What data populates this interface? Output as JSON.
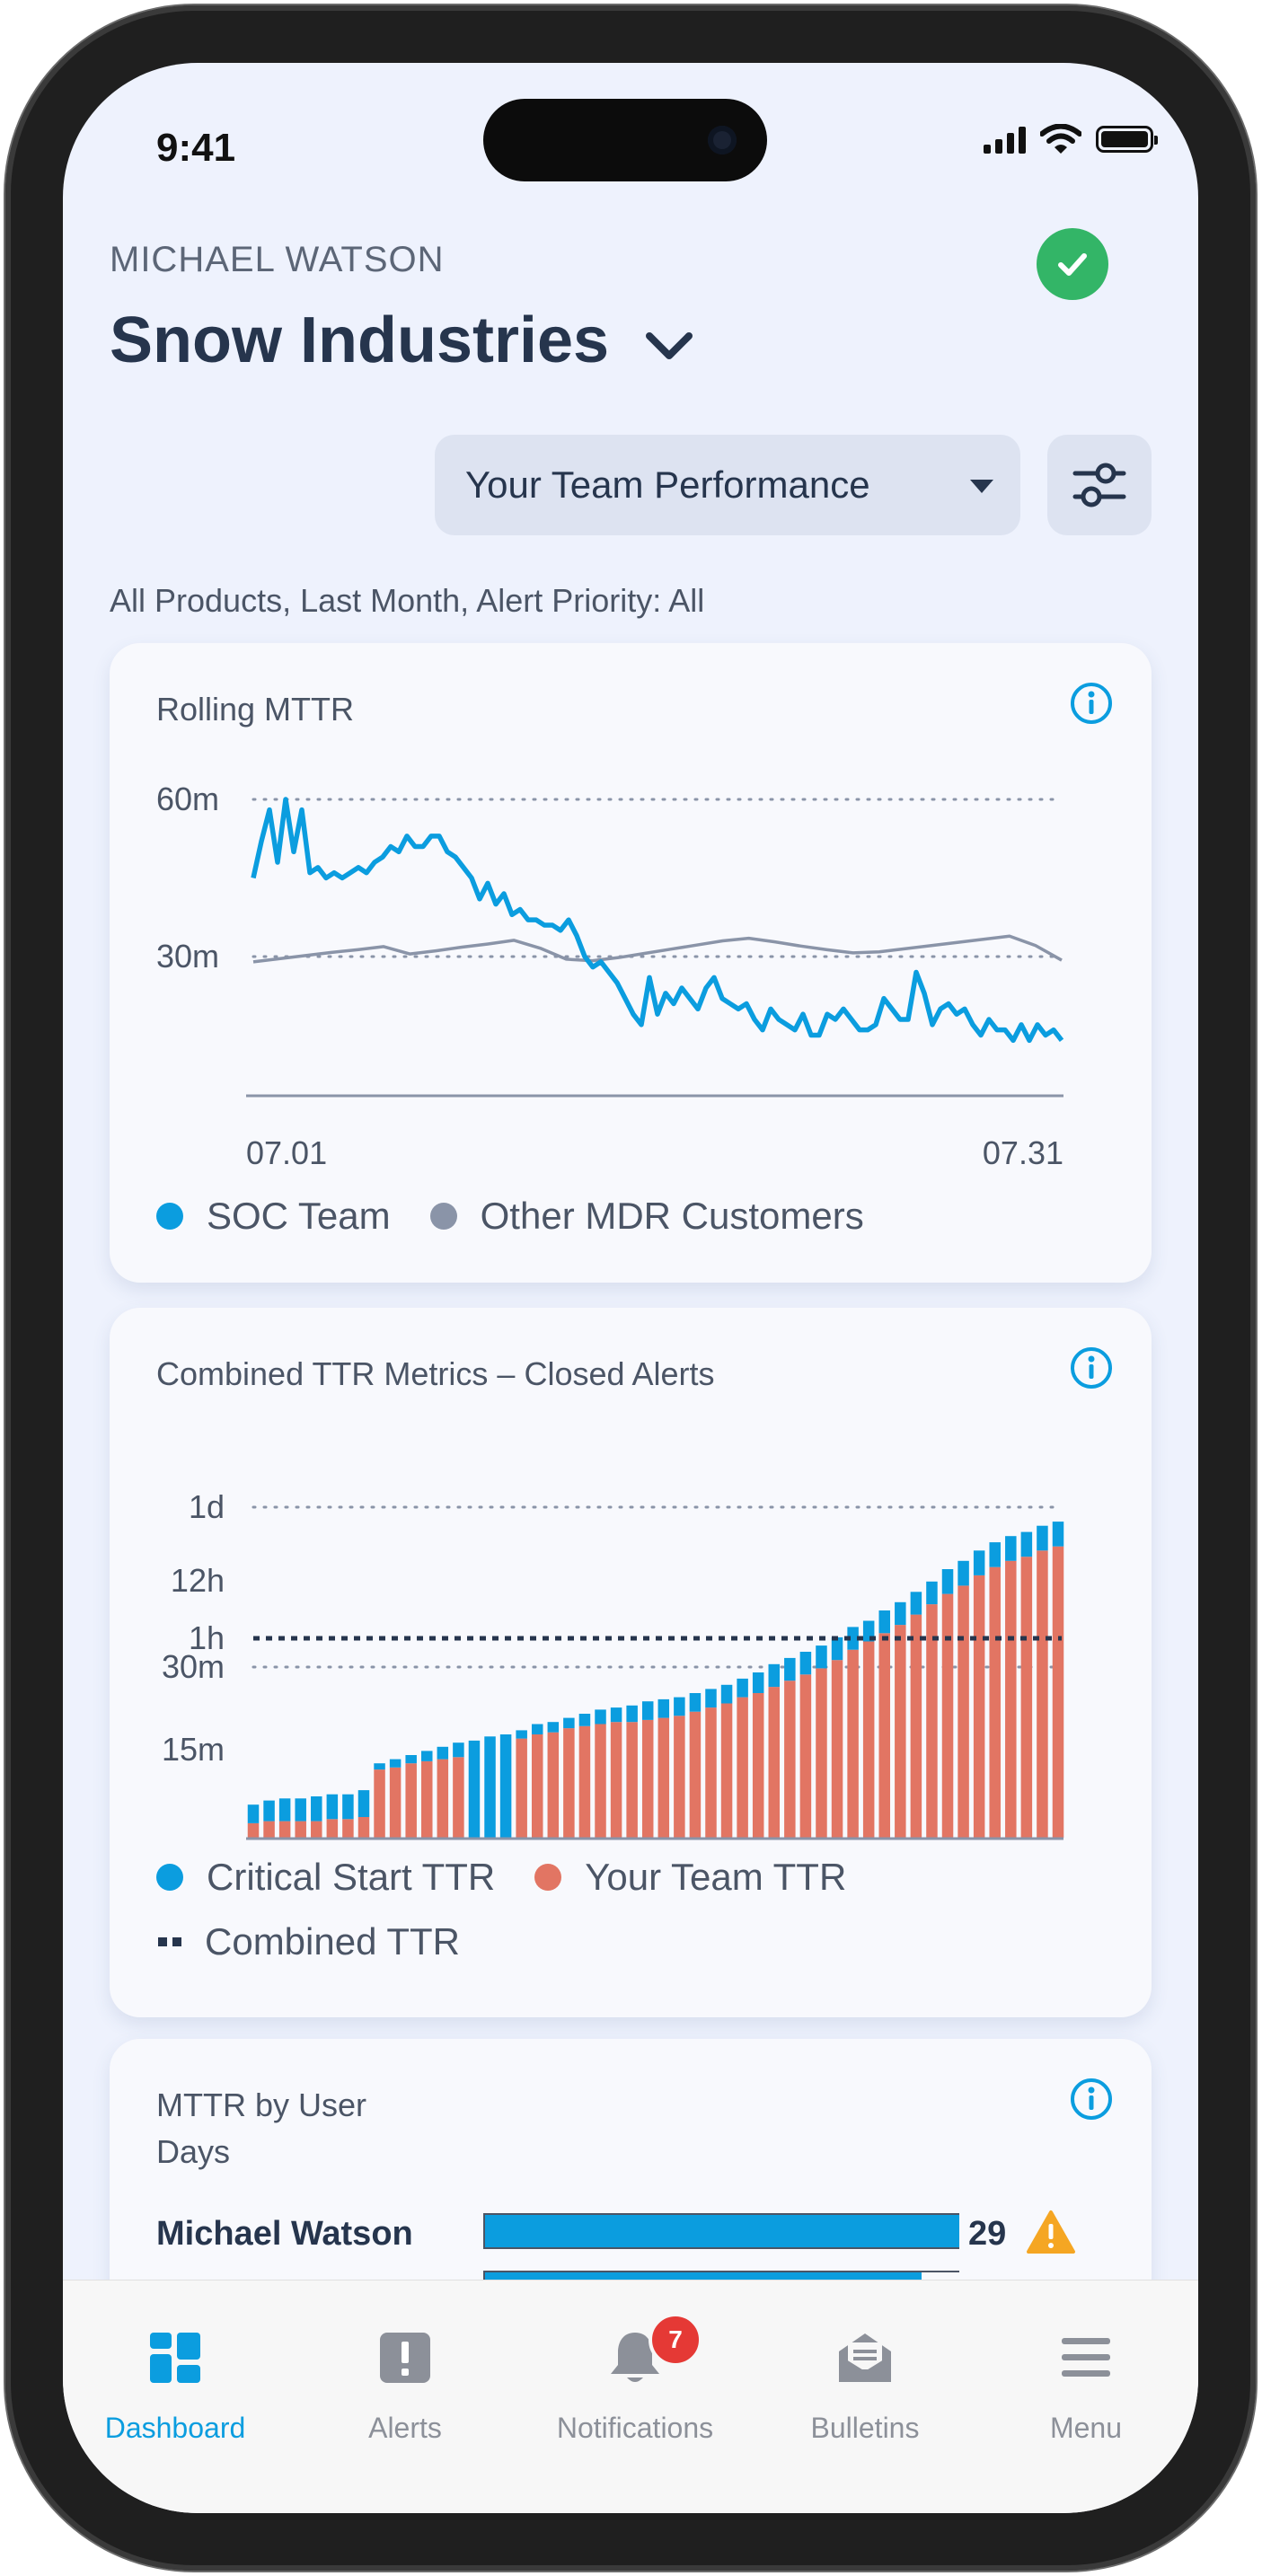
{
  "status_bar": {
    "time": "9:41"
  },
  "header": {
    "user_name": "MICHAEL WATSON",
    "company": "Snow Industries",
    "view_select": "Your Team Performance",
    "filter_summary": "All Products, Last Month, Alert Priority: All"
  },
  "colors": {
    "accent": "#0b9ddf",
    "team": "#e27563",
    "other": "#8a94a8",
    "success": "#33b567",
    "warning": "#f5a623",
    "badge": "#e53935"
  },
  "cards": {
    "rolling": {
      "title": "Rolling MTTR",
      "legend": [
        "SOC Team",
        "Other MDR Customers"
      ]
    },
    "combined": {
      "title": "Combined TTR Metrics – Closed Alerts",
      "legend": [
        "Critical Start TTR",
        "Your Team TTR",
        "Combined TTR"
      ]
    },
    "by_user": {
      "title": "MTTR by User",
      "subtitle": "Days",
      "rows": [
        {
          "name": "Michael Watson",
          "value": "29"
        }
      ]
    }
  },
  "chart_data": [
    {
      "type": "line",
      "title": "Rolling MTTR",
      "x_ticks": [
        "07.01",
        "07.31"
      ],
      "y_ticks": [
        "60m",
        "30m"
      ],
      "ylim": [
        0,
        60
      ],
      "series": [
        {
          "name": "SOC Team",
          "color": "#0b9ddf",
          "values": [
            45,
            52,
            58,
            48,
            60,
            50,
            58,
            46,
            47,
            45,
            46,
            45,
            46,
            47,
            46,
            48,
            49,
            51,
            50,
            53,
            51,
            51,
            53,
            53,
            50,
            49,
            47,
            45,
            41,
            44,
            40,
            42,
            38,
            39,
            37,
            37,
            36,
            36,
            35,
            37,
            34,
            30,
            28,
            29,
            27,
            25,
            22,
            19,
            17,
            26,
            19,
            23,
            21,
            24,
            22,
            20,
            24,
            26,
            22,
            21,
            20,
            21,
            18,
            16,
            20,
            18,
            17,
            16,
            19,
            15,
            15,
            19,
            18,
            20,
            18,
            16,
            16,
            17,
            22,
            20,
            18,
            18,
            27,
            23,
            17,
            20,
            21,
            19,
            20,
            17,
            15,
            18,
            16,
            16,
            14,
            17,
            14,
            17,
            15,
            16,
            14
          ]
        },
        {
          "name": "Other MDR Customers",
          "color": "#8a94a8",
          "values": [
            29,
            29.6,
            30.2,
            30.8,
            31.3,
            31.9,
            30.5,
            31.1,
            31.8,
            32.4,
            33.1,
            31.6,
            29.5,
            29.2,
            29.8,
            30.6,
            31.4,
            32.2,
            33,
            33.5,
            32.8,
            32,
            31.3,
            30.7,
            30.9,
            31.5,
            32.1,
            32.7,
            33.3,
            33.9,
            32.1,
            29.3
          ]
        }
      ],
      "grid": "dotted",
      "legend": "bottom"
    },
    {
      "type": "bar",
      "stacked": true,
      "title": "Combined TTR Metrics – Closed Alerts",
      "y_ticks": [
        "1d",
        "12h",
        "1h",
        "30m",
        "15m"
      ],
      "reference_line": {
        "name": "Combined TTR",
        "value": "1h"
      },
      "series": [
        {
          "name": "Your Team TTR",
          "color": "#e27563",
          "values": [
            7,
            8,
            8,
            8,
            8,
            9,
            9,
            10,
            33,
            34,
            36,
            37,
            38,
            39,
            0,
            0,
            0,
            48,
            50,
            51,
            53,
            54,
            55,
            56,
            56,
            57,
            58,
            59,
            61,
            63,
            65,
            68,
            70,
            73,
            76,
            79,
            82,
            86,
            91,
            95,
            99,
            103,
            108,
            113,
            118,
            122,
            127,
            131,
            134,
            136,
            139,
            141
          ]
        },
        {
          "name": "Critical Start TTR",
          "color": "#0b9ddf",
          "values": [
            9,
            10,
            11,
            11,
            12,
            12,
            12,
            13,
            3,
            4,
            4,
            5,
            6,
            7,
            47,
            49,
            50,
            4,
            5,
            5,
            5,
            6,
            7,
            7,
            8,
            9,
            9,
            9,
            9,
            9,
            9,
            9,
            10,
            11,
            11,
            11,
            11,
            11,
            11,
            10,
            11,
            11,
            11,
            11,
            12,
            12,
            12,
            12,
            12,
            12,
            12,
            12
          ]
        }
      ],
      "grid": "dotted",
      "legend": "bottom"
    }
  ],
  "tabbar": {
    "tabs": [
      {
        "label": "Dashboard",
        "active": true
      },
      {
        "label": "Alerts"
      },
      {
        "label": "Notifications",
        "badge": "7"
      },
      {
        "label": "Bulletins"
      },
      {
        "label": "Menu"
      }
    ]
  }
}
